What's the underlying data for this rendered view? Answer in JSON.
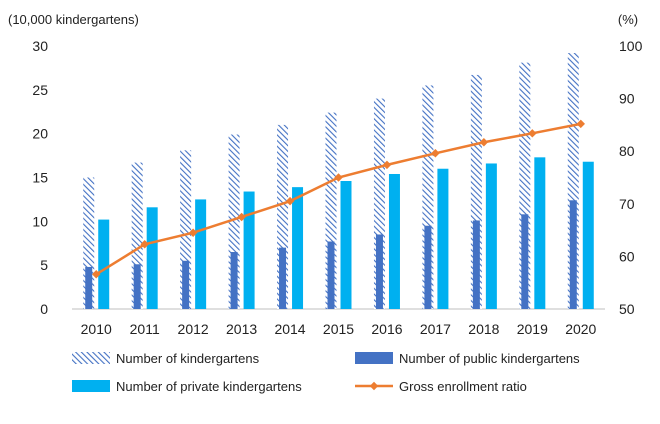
{
  "chart_data": {
    "type": "bar",
    "categories": [
      "2010",
      "2011",
      "2012",
      "2013",
      "2014",
      "2015",
      "2016",
      "2017",
      "2018",
      "2019",
      "2020"
    ],
    "series": [
      {
        "name": "Number of kindergartens",
        "kind": "bar",
        "axis": "left",
        "pattern": "hatched",
        "color": "#4472c4",
        "values": [
          15.0,
          16.7,
          18.1,
          19.9,
          21.0,
          22.4,
          24.0,
          25.5,
          26.7,
          28.1,
          29.2
        ]
      },
      {
        "name": "Number of public kindergartens",
        "kind": "bar",
        "axis": "left",
        "color": "#4472c4",
        "values": [
          4.8,
          5.1,
          5.5,
          6.5,
          7.0,
          7.7,
          8.5,
          9.5,
          10.1,
          10.8,
          12.4
        ]
      },
      {
        "name": "Number of private kindergartens",
        "kind": "bar",
        "axis": "left",
        "color": "#00b0f0",
        "values": [
          10.2,
          11.6,
          12.5,
          13.4,
          13.9,
          14.6,
          15.4,
          16.0,
          16.6,
          17.3,
          16.8
        ]
      },
      {
        "name": "Gross enrollment ratio",
        "kind": "line",
        "axis": "right",
        "color": "#ed7d31",
        "values": [
          56.6,
          62.3,
          64.5,
          67.5,
          70.5,
          75.0,
          77.4,
          79.6,
          81.7,
          83.4,
          85.2
        ]
      }
    ],
    "left_axis": {
      "label": "(10,000 kindergartens)",
      "min": 0,
      "max": 30,
      "ticks": [
        0,
        5,
        10,
        15,
        20,
        25,
        30
      ]
    },
    "right_axis": {
      "label": "(%)",
      "min": 50,
      "max": 100,
      "ticks": [
        50,
        60,
        70,
        80,
        90,
        100
      ]
    },
    "grid": false,
    "legend_position": "bottom"
  }
}
